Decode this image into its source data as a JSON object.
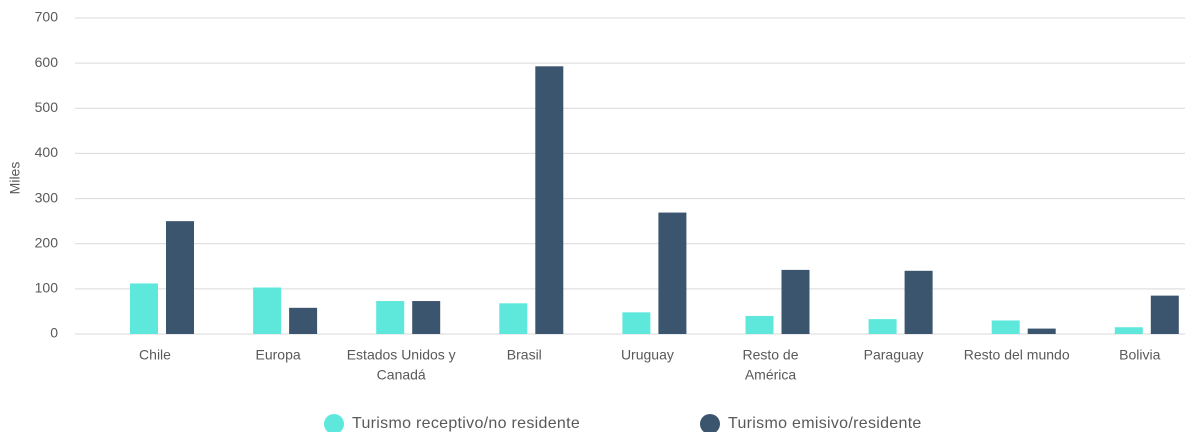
{
  "chart_data": {
    "type": "bar",
    "categories": [
      [
        "Chile"
      ],
      [
        "Europa"
      ],
      [
        "Estados Unidos y",
        "Canadá"
      ],
      [
        "Brasil"
      ],
      [
        "Uruguay"
      ],
      [
        "Resto de",
        "América"
      ],
      [
        "Paraguay"
      ],
      [
        "Resto del mundo"
      ],
      [
        "Bolivia"
      ]
    ],
    "series": [
      {
        "name": "Turismo receptivo/no residente",
        "color": "#5ee8dc",
        "values": [
          112,
          103,
          73,
          68,
          48,
          40,
          33,
          30,
          15
        ]
      },
      {
        "name": "Turismo emisivo/residente",
        "color": "#3b556e",
        "values": [
          250,
          58,
          73,
          593,
          269,
          142,
          140,
          12,
          85
        ]
      }
    ],
    "ylabel": "Miles",
    "ylim": [
      0,
      700
    ],
    "yticks": [
      0,
      100,
      200,
      300,
      400,
      500,
      600,
      700
    ],
    "grid": true
  }
}
